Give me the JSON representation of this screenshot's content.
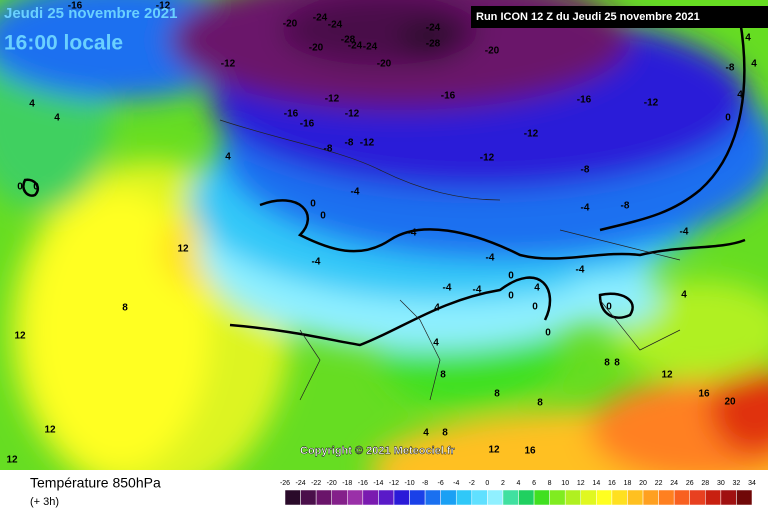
{
  "header": {
    "date": "Jeudi 25 novembre 2021",
    "time": "16:00 locale",
    "run": "Run ICON 12 Z du Jeudi 25 novembre 2021"
  },
  "copyright": "Copyright © 2021 Meteociel.fr",
  "footer": {
    "title": "Température 850hPa",
    "step": "(+ 3h)"
  },
  "legend": {
    "ticks": [
      -26,
      -24,
      -22,
      -20,
      -18,
      -16,
      -14,
      -12,
      -10,
      -8,
      -6,
      -4,
      -2,
      0,
      2,
      4,
      6,
      8,
      10,
      12,
      14,
      16,
      18,
      20,
      22,
      24,
      26,
      28,
      30,
      32,
      34
    ],
    "colors": [
      "#2a0a2a",
      "#4a0f4a",
      "#6a146a",
      "#84208a",
      "#9a30a8",
      "#7a1ab0",
      "#5a1ac8",
      "#2a1ad8",
      "#1a40e8",
      "#1a70f0",
      "#1aa0f4",
      "#30c8f8",
      "#60e0ff",
      "#90f0ff",
      "#40e0a0",
      "#20d060",
      "#40e020",
      "#80ec20",
      "#b0f020",
      "#e0f820",
      "#ffff20",
      "#ffe020",
      "#ffc020",
      "#ffa020",
      "#ff8020",
      "#f86020",
      "#e84020",
      "#c82010",
      "#a01010",
      "#700808"
    ]
  },
  "map_labels": [
    "-16",
    "-12",
    "-20",
    "-24",
    "-24",
    "-20",
    "-28",
    "-24",
    "-24",
    "-20",
    "-24",
    "-28",
    "-20",
    "-12",
    "-16",
    "-16",
    "-12",
    "-12",
    "-16",
    "-16",
    "-12",
    "-8",
    "-8",
    "-12",
    "-12",
    "-12",
    "-8",
    "-4",
    "-4",
    "-8",
    "-4",
    "-4",
    "-4",
    "0",
    "0",
    "4",
    "4",
    "4",
    "0",
    "0",
    "12",
    "8",
    "12",
    "12",
    "12",
    "4",
    "4",
    "8",
    "8",
    "8",
    "8",
    "8",
    "12",
    "16",
    "20",
    "16",
    "12",
    "4",
    "8",
    "4",
    "4",
    "4",
    "0",
    "0",
    "0",
    "0",
    "4",
    "-4",
    "-4",
    "0",
    "0",
    "-4",
    "4",
    "-8",
    "-4"
  ]
}
